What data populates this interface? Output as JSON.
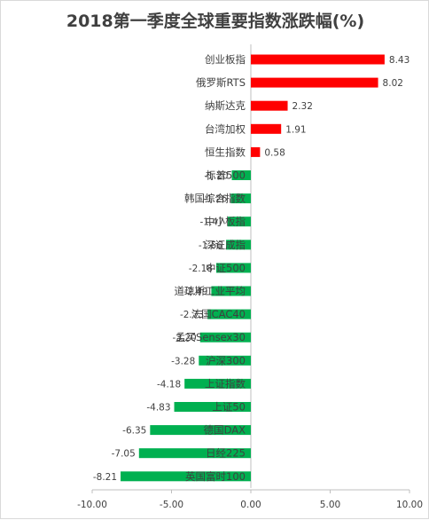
{
  "chart_data": {
    "type": "bar",
    "orientation": "horizontal",
    "title": "2018第一季度全球重要指数涨跌幅(%)",
    "categories": [
      "创业板指",
      "俄罗斯RTS",
      "纳斯达克",
      "台湾加权",
      "恒生指数",
      "标普500",
      "韩国综合指数",
      "中小板指",
      "深证成指",
      "中证500",
      "道琼斯工业平均",
      "法国CAC40",
      "孟买Sensex30",
      "沪深300",
      "上证指数",
      "上证50",
      "德国DAX",
      "日经225",
      "英国富时100"
    ],
    "values": [
      8.43,
      8.02,
      2.32,
      1.91,
      0.58,
      -1.2,
      -1.26,
      -1.47,
      -1.56,
      -2.18,
      -2.49,
      -2.73,
      -3.2,
      -3.28,
      -4.18,
      -4.83,
      -6.35,
      -7.05,
      -8.21
    ],
    "value_labels": [
      "8.43",
      "8.02",
      "2.32",
      "1.91",
      "0.58",
      "-1.20",
      "-1.26",
      "-1.47",
      "-1.56",
      "-2.18",
      "-2.49",
      "-2.73",
      "-3.20",
      "-3.28",
      "-4.18",
      "-4.83",
      "-6.35",
      "-7.05",
      "-8.21"
    ],
    "xlim": [
      -10,
      10
    ],
    "x_ticks": [
      -10,
      -5,
      0,
      5,
      10
    ],
    "x_tick_labels": [
      "-10.00",
      "-5.00",
      "0.00",
      "5.00",
      "10.00"
    ],
    "grid": false,
    "legend": "none",
    "colors": {
      "positive": "#ff0000",
      "negative": "#00b050",
      "axis": "#bfbfbf",
      "text": "#404040"
    }
  }
}
